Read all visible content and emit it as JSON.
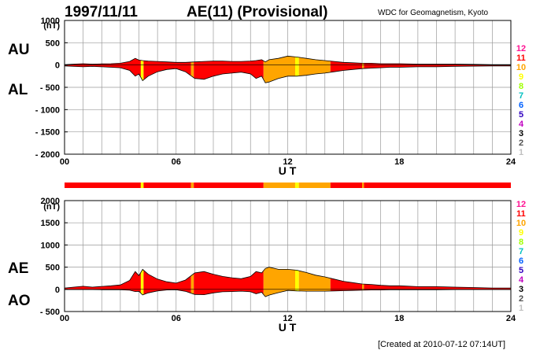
{
  "header": {
    "date": "1997/11/11",
    "title": "AE(11) (Provisional)",
    "source": "WDC for Geomagnetism, Kyoto",
    "created": "[Created at 2010-07-12 07:14UT]"
  },
  "panel_labels": {
    "au": "AU",
    "al": "AL",
    "ae": "AE",
    "ao": "AO"
  },
  "colors": {
    "activity_scale": [
      "#c0c0c0",
      "#505050",
      "#000000",
      "#c000c0",
      "#3000c0",
      "#0060ff",
      "#00c0c0",
      "#a0ff00",
      "#ffff00",
      "#ffa500",
      "#ff0000",
      "#ff1493"
    ],
    "fill_high": "#ff3b10",
    "fill_mid": "#ffa020",
    "fill_peak": "#ffff40"
  },
  "chart_data": [
    {
      "type": "area",
      "panel": "AU/AL",
      "xlabel": "U T",
      "ylabel": "(nT)",
      "xlim": [
        0,
        24
      ],
      "ylim": [
        -2000,
        1000
      ],
      "x_ticks": [
        "00",
        "06",
        "12",
        "18",
        "24"
      ],
      "y_ticks": [
        "1000",
        "500",
        "0",
        "- 500",
        "- 1000",
        "- 1500",
        "- 2000"
      ],
      "grid": true,
      "scale_labels": [
        "12",
        "11",
        "10",
        "9",
        "8",
        "7",
        "6",
        "5",
        "4",
        "3",
        "2",
        "1"
      ],
      "x": [
        0,
        0.5,
        1,
        1.5,
        2,
        2.5,
        3,
        3.5,
        3.8,
        4,
        4.2,
        4.5,
        5,
        5.5,
        6,
        6.5,
        7,
        7.5,
        8,
        8.5,
        9,
        9.5,
        10,
        10.3,
        10.6,
        10.8,
        11,
        11.5,
        12,
        12.5,
        13,
        13.5,
        14,
        14.5,
        15,
        15.5,
        16,
        16.5,
        17,
        17.5,
        18,
        19,
        20,
        21,
        22,
        23,
        24
      ],
      "series": [
        {
          "name": "AU",
          "values": [
            10,
            20,
            30,
            20,
            25,
            30,
            40,
            80,
            150,
            110,
            100,
            90,
            80,
            70,
            60,
            60,
            70,
            80,
            90,
            90,
            80,
            80,
            90,
            100,
            120,
            70,
            120,
            150,
            200,
            180,
            150,
            120,
            100,
            80,
            60,
            50,
            40,
            40,
            30,
            30,
            30,
            20,
            20,
            20,
            15,
            10,
            10
          ]
        },
        {
          "name": "AL",
          "values": [
            -20,
            -30,
            -40,
            -30,
            -40,
            -50,
            -60,
            -120,
            -250,
            -200,
            -350,
            -250,
            -150,
            -100,
            -80,
            -150,
            -300,
            -320,
            -250,
            -200,
            -180,
            -160,
            -200,
            -300,
            -250,
            -400,
            -380,
            -300,
            -250,
            -250,
            -230,
            -200,
            -180,
            -150,
            -120,
            -100,
            -80,
            -70,
            -60,
            -50,
            -50,
            -40,
            -40,
            -30,
            -25,
            -20,
            -20
          ]
        }
      ]
    },
    {
      "type": "area",
      "panel": "AE/AO",
      "xlabel": "U T",
      "ylabel": "(nT)",
      "xlim": [
        0,
        24
      ],
      "ylim": [
        -500,
        2000
      ],
      "x_ticks": [
        "00",
        "06",
        "12",
        "18",
        "24"
      ],
      "y_ticks": [
        "2000",
        "1500",
        "1000",
        "500",
        "0",
        "- 500"
      ],
      "grid": true,
      "scale_labels": [
        "12",
        "11",
        "10",
        "9",
        "8",
        "7",
        "6",
        "5",
        "4",
        "3",
        "2",
        "1"
      ],
      "x": [
        0,
        0.5,
        1,
        1.5,
        2,
        2.5,
        3,
        3.5,
        3.8,
        4,
        4.2,
        4.5,
        5,
        5.5,
        6,
        6.5,
        7,
        7.5,
        8,
        8.5,
        9,
        9.5,
        10,
        10.3,
        10.6,
        10.8,
        11,
        11.5,
        12,
        12.5,
        13,
        13.5,
        14,
        14.5,
        15,
        15.5,
        16,
        16.5,
        17,
        17.5,
        18,
        19,
        20,
        21,
        22,
        23,
        24
      ],
      "series": [
        {
          "name": "AE",
          "values": [
            30,
            50,
            70,
            50,
            65,
            80,
            100,
            200,
            400,
            310,
            450,
            340,
            230,
            170,
            140,
            210,
            370,
            400,
            340,
            290,
            260,
            240,
            290,
            400,
            370,
            470,
            500,
            450,
            450,
            430,
            380,
            320,
            280,
            230,
            180,
            150,
            120,
            110,
            90,
            80,
            80,
            60,
            60,
            50,
            40,
            30,
            30
          ]
        },
        {
          "name": "AO",
          "values": [
            -5,
            -5,
            -5,
            -5,
            -8,
            -10,
            -10,
            -20,
            -50,
            -45,
            -125,
            -80,
            -35,
            -15,
            -10,
            -45,
            -115,
            -120,
            -80,
            -55,
            -50,
            -40,
            -55,
            -100,
            -65,
            -165,
            -130,
            -75,
            -25,
            -35,
            -40,
            -40,
            -40,
            -35,
            -30,
            -25,
            -20,
            -15,
            -15,
            -10,
            -10,
            -10,
            -10,
            -5,
            -5,
            -5,
            -5
          ]
        }
      ]
    }
  ],
  "activity_bar": [
    {
      "from": 0,
      "to": 4.1,
      "level": "11"
    },
    {
      "from": 4.1,
      "to": 4.25,
      "level": "9"
    },
    {
      "from": 4.25,
      "to": 6.8,
      "level": "11"
    },
    {
      "from": 6.8,
      "to": 6.95,
      "level": "10"
    },
    {
      "from": 6.95,
      "to": 10.7,
      "level": "11"
    },
    {
      "from": 10.7,
      "to": 12.4,
      "level": "10"
    },
    {
      "from": 12.4,
      "to": 12.6,
      "level": "9"
    },
    {
      "from": 12.6,
      "to": 14.3,
      "level": "10"
    },
    {
      "from": 14.3,
      "to": 16.0,
      "level": "11"
    },
    {
      "from": 16.0,
      "to": 16.1,
      "level": "10"
    },
    {
      "from": 16.1,
      "to": 24,
      "level": "11"
    }
  ]
}
